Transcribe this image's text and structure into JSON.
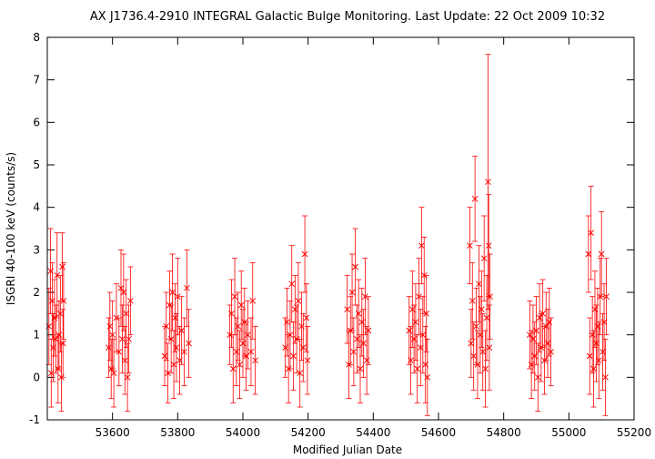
{
  "chart_data": {
    "type": "scatter",
    "title": "AX J1736.4-2910    INTEGRAL Galactic Bulge Monitoring.  Last Update: 22 Oct 2009 10:32",
    "xlabel": "Modified Julian Date",
    "ylabel": "ISGRI 40-100 keV (counts/s)",
    "xlim": [
      53400,
      55200
    ],
    "ylim": [
      -1,
      8
    ],
    "x_ticks": [
      53600,
      53800,
      54000,
      54200,
      54400,
      54600,
      54800,
      55000,
      55200
    ],
    "y_ticks": [
      -1,
      0,
      1,
      2,
      3,
      4,
      5,
      6,
      7,
      8
    ],
    "grid": false,
    "legend": "none",
    "marker": "x",
    "error_bars": true,
    "color": "#ff0000",
    "series": [
      {
        "points": [
          {
            "x": 53405,
            "y": 1.2,
            "err": 0.9
          },
          {
            "x": 53410,
            "y": 2.5,
            "err": 1.0
          },
          {
            "x": 53412,
            "y": 0.1,
            "err": 0.8
          },
          {
            "x": 53415,
            "y": 1.8,
            "err": 0.9
          },
          {
            "x": 53418,
            "y": 0.7,
            "err": 0.8
          },
          {
            "x": 53422,
            "y": 1.4,
            "err": 0.9
          },
          {
            "x": 53426,
            "y": 0.9,
            "err": 0.8
          },
          {
            "x": 53430,
            "y": 2.4,
            "err": 1.0
          },
          {
            "x": 53433,
            "y": 0.2,
            "err": 0.8
          },
          {
            "x": 53436,
            "y": 1.0,
            "err": 0.8
          },
          {
            "x": 53440,
            "y": 1.5,
            "err": 0.9
          },
          {
            "x": 53443,
            "y": 0.0,
            "err": 0.8
          },
          {
            "x": 53446,
            "y": 2.6,
            "err": 0.8
          },
          {
            "x": 53448,
            "y": 0.8,
            "err": 0.8
          },
          {
            "x": 53450,
            "y": 1.8,
            "err": 0.9
          },
          {
            "x": 53588,
            "y": 0.7,
            "err": 0.7
          },
          {
            "x": 53592,
            "y": 1.2,
            "err": 0.8
          },
          {
            "x": 53596,
            "y": 0.2,
            "err": 0.7
          },
          {
            "x": 53600,
            "y": 1.0,
            "err": 0.8
          },
          {
            "x": 53604,
            "y": 0.1,
            "err": 0.8
          },
          {
            "x": 53612,
            "y": 1.4,
            "err": 0.8
          },
          {
            "x": 53620,
            "y": 0.6,
            "err": 0.8
          },
          {
            "x": 53626,
            "y": 2.1,
            "err": 0.9
          },
          {
            "x": 53630,
            "y": 0.9,
            "err": 0.8
          },
          {
            "x": 53634,
            "y": 2.0,
            "err": 0.9
          },
          {
            "x": 53638,
            "y": 0.4,
            "err": 0.8
          },
          {
            "x": 53642,
            "y": 1.5,
            "err": 0.8
          },
          {
            "x": 53646,
            "y": 0.0,
            "err": 0.8
          },
          {
            "x": 53650,
            "y": 0.9,
            "err": 0.8
          },
          {
            "x": 53655,
            "y": 1.8,
            "err": 0.8
          },
          {
            "x": 53760,
            "y": 0.5,
            "err": 0.7
          },
          {
            "x": 53765,
            "y": 1.2,
            "err": 0.8
          },
          {
            "x": 53770,
            "y": 0.1,
            "err": 0.7
          },
          {
            "x": 53775,
            "y": 1.7,
            "err": 0.8
          },
          {
            "x": 53780,
            "y": 0.9,
            "err": 0.8
          },
          {
            "x": 53784,
            "y": 2.0,
            "err": 0.9
          },
          {
            "x": 53788,
            "y": 0.3,
            "err": 0.8
          },
          {
            "x": 53792,
            "y": 1.4,
            "err": 0.8
          },
          {
            "x": 53796,
            "y": 0.7,
            "err": 0.8
          },
          {
            "x": 53800,
            "y": 1.9,
            "err": 0.9
          },
          {
            "x": 53806,
            "y": 0.4,
            "err": 0.8
          },
          {
            "x": 53812,
            "y": 1.1,
            "err": 0.8
          },
          {
            "x": 53820,
            "y": 0.6,
            "err": 0.8
          },
          {
            "x": 53828,
            "y": 2.1,
            "err": 0.9
          },
          {
            "x": 53834,
            "y": 0.8,
            "err": 0.8
          },
          {
            "x": 53960,
            "y": 1.0,
            "err": 0.7
          },
          {
            "x": 53965,
            "y": 1.5,
            "err": 0.8
          },
          {
            "x": 53970,
            "y": 0.2,
            "err": 0.8
          },
          {
            "x": 53975,
            "y": 1.9,
            "err": 0.9
          },
          {
            "x": 53980,
            "y": 0.6,
            "err": 0.8
          },
          {
            "x": 53985,
            "y": 1.2,
            "err": 0.8
          },
          {
            "x": 53990,
            "y": 0.3,
            "err": 0.8
          },
          {
            "x": 53995,
            "y": 1.7,
            "err": 0.8
          },
          {
            "x": 54000,
            "y": 0.8,
            "err": 0.8
          },
          {
            "x": 54005,
            "y": 1.3,
            "err": 0.8
          },
          {
            "x": 54010,
            "y": 0.5,
            "err": 0.8
          },
          {
            "x": 54015,
            "y": 1.0,
            "err": 0.8
          },
          {
            "x": 54025,
            "y": 0.6,
            "err": 0.8
          },
          {
            "x": 54030,
            "y": 1.8,
            "err": 0.9
          },
          {
            "x": 54038,
            "y": 0.4,
            "err": 0.8
          },
          {
            "x": 54130,
            "y": 0.7,
            "err": 0.7
          },
          {
            "x": 54135,
            "y": 1.3,
            "err": 0.8
          },
          {
            "x": 54140,
            "y": 0.2,
            "err": 0.8
          },
          {
            "x": 54145,
            "y": 1.0,
            "err": 0.8
          },
          {
            "x": 54150,
            "y": 2.2,
            "err": 0.9
          },
          {
            "x": 54155,
            "y": 0.5,
            "err": 0.8
          },
          {
            "x": 54160,
            "y": 1.6,
            "err": 0.8
          },
          {
            "x": 54165,
            "y": 0.9,
            "err": 0.8
          },
          {
            "x": 54170,
            "y": 1.8,
            "err": 0.9
          },
          {
            "x": 54175,
            "y": 0.1,
            "err": 0.8
          },
          {
            "x": 54180,
            "y": 1.2,
            "err": 0.8
          },
          {
            "x": 54185,
            "y": 0.7,
            "err": 0.8
          },
          {
            "x": 54190,
            "y": 2.9,
            "err": 0.9
          },
          {
            "x": 54195,
            "y": 1.4,
            "err": 0.8
          },
          {
            "x": 54198,
            "y": 0.4,
            "err": 0.8
          },
          {
            "x": 54320,
            "y": 1.6,
            "err": 0.8
          },
          {
            "x": 54325,
            "y": 0.3,
            "err": 0.8
          },
          {
            "x": 54330,
            "y": 1.1,
            "err": 0.8
          },
          {
            "x": 54335,
            "y": 2.0,
            "err": 0.9
          },
          {
            "x": 54340,
            "y": 0.6,
            "err": 0.8
          },
          {
            "x": 54345,
            "y": 2.6,
            "err": 0.9
          },
          {
            "x": 54350,
            "y": 0.9,
            "err": 0.8
          },
          {
            "x": 54355,
            "y": 1.5,
            "err": 0.8
          },
          {
            "x": 54360,
            "y": 0.2,
            "err": 0.8
          },
          {
            "x": 54365,
            "y": 1.3,
            "err": 0.8
          },
          {
            "x": 54370,
            "y": 0.8,
            "err": 0.8
          },
          {
            "x": 54375,
            "y": 1.9,
            "err": 0.9
          },
          {
            "x": 54380,
            "y": 0.4,
            "err": 0.8
          },
          {
            "x": 54385,
            "y": 1.1,
            "err": 0.8
          },
          {
            "x": 54510,
            "y": 1.1,
            "err": 0.8
          },
          {
            "x": 54515,
            "y": 0.4,
            "err": 0.8
          },
          {
            "x": 54520,
            "y": 1.6,
            "err": 0.9
          },
          {
            "x": 54525,
            "y": 0.9,
            "err": 0.8
          },
          {
            "x": 54530,
            "y": 1.3,
            "err": 0.9
          },
          {
            "x": 54535,
            "y": 0.2,
            "err": 0.8
          },
          {
            "x": 54540,
            "y": 1.9,
            "err": 0.9
          },
          {
            "x": 54545,
            "y": 0.7,
            "err": 0.9
          },
          {
            "x": 54548,
            "y": 3.1,
            "err": 0.9
          },
          {
            "x": 54552,
            "y": 1.0,
            "err": 0.9
          },
          {
            "x": 54556,
            "y": 2.4,
            "err": 0.9
          },
          {
            "x": 54560,
            "y": 0.3,
            "err": 0.9
          },
          {
            "x": 54563,
            "y": 1.5,
            "err": 0.9
          },
          {
            "x": 54566,
            "y": 0.0,
            "err": 0.9
          },
          {
            "x": 54696,
            "y": 3.1,
            "err": 0.9
          },
          {
            "x": 54700,
            "y": 0.8,
            "err": 0.8
          },
          {
            "x": 54704,
            "y": 1.8,
            "err": 0.9
          },
          {
            "x": 54708,
            "y": 0.5,
            "err": 0.8
          },
          {
            "x": 54712,
            "y": 4.2,
            "err": 1.0
          },
          {
            "x": 54716,
            "y": 1.2,
            "err": 0.9
          },
          {
            "x": 54720,
            "y": 0.3,
            "err": 0.8
          },
          {
            "x": 54724,
            "y": 2.2,
            "err": 0.9
          },
          {
            "x": 54728,
            "y": 1.0,
            "err": 0.9
          },
          {
            "x": 54732,
            "y": 1.6,
            "err": 0.9
          },
          {
            "x": 54736,
            "y": 0.6,
            "err": 0.9
          },
          {
            "x": 54740,
            "y": 2.8,
            "err": 1.0
          },
          {
            "x": 54744,
            "y": 0.2,
            "err": 0.9
          },
          {
            "x": 54748,
            "y": 1.4,
            "err": 1.0
          },
          {
            "x": 54752,
            "y": 4.6,
            "err": 3.0
          },
          {
            "x": 54754,
            "y": 3.1,
            "err": 1.2
          },
          {
            "x": 54756,
            "y": 0.7,
            "err": 1.0
          },
          {
            "x": 54758,
            "y": 1.9,
            "err": 1.0
          },
          {
            "x": 54880,
            "y": 1.0,
            "err": 0.8
          },
          {
            "x": 54885,
            "y": 0.3,
            "err": 0.8
          },
          {
            "x": 54890,
            "y": 0.9,
            "err": 0.8
          },
          {
            "x": 54895,
            "y": 0.5,
            "err": 0.8
          },
          {
            "x": 54900,
            "y": 1.1,
            "err": 0.8
          },
          {
            "x": 54905,
            "y": 0.0,
            "err": 0.8
          },
          {
            "x": 54910,
            "y": 1.4,
            "err": 0.8
          },
          {
            "x": 54915,
            "y": 0.7,
            "err": 0.8
          },
          {
            "x": 54920,
            "y": 1.5,
            "err": 0.8
          },
          {
            "x": 54925,
            "y": 0.4,
            "err": 0.8
          },
          {
            "x": 54930,
            "y": 1.2,
            "err": 0.8
          },
          {
            "x": 54935,
            "y": 0.8,
            "err": 0.8
          },
          {
            "x": 54940,
            "y": 1.3,
            "err": 0.8
          },
          {
            "x": 54945,
            "y": 0.6,
            "err": 0.8
          },
          {
            "x": 55060,
            "y": 2.9,
            "err": 0.9
          },
          {
            "x": 55064,
            "y": 0.5,
            "err": 0.9
          },
          {
            "x": 55068,
            "y": 3.4,
            "err": 1.1
          },
          {
            "x": 55072,
            "y": 1.0,
            "err": 0.9
          },
          {
            "x": 55076,
            "y": 0.2,
            "err": 0.9
          },
          {
            "x": 55080,
            "y": 1.6,
            "err": 0.9
          },
          {
            "x": 55084,
            "y": 0.8,
            "err": 0.9
          },
          {
            "x": 55088,
            "y": 1.2,
            "err": 0.9
          },
          {
            "x": 55092,
            "y": 0.4,
            "err": 0.9
          },
          {
            "x": 55096,
            "y": 1.9,
            "err": 0.9
          },
          {
            "x": 55100,
            "y": 2.9,
            "err": 1.0
          },
          {
            "x": 55104,
            "y": 0.6,
            "err": 0.9
          },
          {
            "x": 55108,
            "y": 1.3,
            "err": 0.9
          },
          {
            "x": 55112,
            "y": 0.0,
            "err": 0.9
          },
          {
            "x": 55115,
            "y": 1.9,
            "err": 0.9
          }
        ]
      }
    ]
  }
}
